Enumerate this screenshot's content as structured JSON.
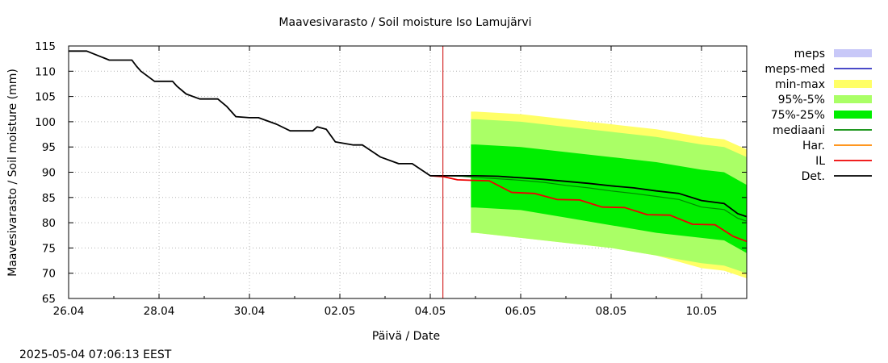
{
  "chart_data": {
    "type": "area",
    "title": "Maavesivarasto / Soil moisture   Iso Lamujärvi",
    "xlabel": "Päivä / Date",
    "ylabel": "Maavesivarasto / Soil moisture (mm)",
    "timestamp": "2025-05-04 07:06:13 EEST",
    "xlim": [
      0,
      15
    ],
    "ylim": [
      65,
      115
    ],
    "x_ticks": [
      {
        "x": 0,
        "label": "26.04"
      },
      {
        "x": 2,
        "label": "28.04"
      },
      {
        "x": 4,
        "label": "30.04"
      },
      {
        "x": 6,
        "label": "02.05"
      },
      {
        "x": 8,
        "label": "04.05"
      },
      {
        "x": 10,
        "label": "06.05"
      },
      {
        "x": 12,
        "label": "08.05"
      },
      {
        "x": 14,
        "label": "10.05"
      }
    ],
    "y_ticks": [
      65,
      70,
      75,
      80,
      85,
      90,
      95,
      100,
      105,
      110,
      115
    ],
    "grid": true,
    "now_x": 8.28,
    "legend_position": "right",
    "legend": [
      {
        "label": "meps",
        "kind": "band",
        "color": "#c8c8f8"
      },
      {
        "label": "meps-med",
        "kind": "line",
        "color": "#3030c0"
      },
      {
        "label": "min-max",
        "kind": "band",
        "color": "#ffff66"
      },
      {
        "label": "95%-5%",
        "kind": "band",
        "color": "#aaff66"
      },
      {
        "label": "75%-25%",
        "kind": "band",
        "color": "#00ee00"
      },
      {
        "label": "mediaani",
        "kind": "line",
        "color": "#008800"
      },
      {
        "label": "Har.",
        "kind": "line",
        "color": "#ff8800"
      },
      {
        "label": "IL",
        "kind": "line",
        "color": "#ee0000"
      },
      {
        "label": "Det.",
        "kind": "line",
        "color": "#000000"
      }
    ],
    "bands": {
      "x": [
        8.9,
        9.0,
        10.0,
        11.0,
        12.0,
        13.0,
        14.0,
        14.5,
        15.0
      ],
      "minmax_upper": [
        102,
        102,
        101.5,
        100.5,
        99.5,
        98.5,
        97,
        96.5,
        94.5
      ],
      "minmax_lower": [
        78,
        78,
        77,
        76,
        75,
        73.5,
        71,
        70.5,
        69
      ],
      "p95_upper": [
        100.5,
        100.5,
        100,
        99,
        98,
        97,
        95.5,
        95,
        93
      ],
      "p5_lower": [
        78,
        78,
        77,
        76,
        75,
        73.5,
        72,
        71.5,
        70
      ],
      "p75_upper": [
        95.5,
        95.5,
        95,
        94,
        93,
        92,
        90.5,
        90,
        87.5
      ],
      "p25_lower": [
        83,
        83,
        82.5,
        81,
        79.5,
        78,
        77,
        76.5,
        74
      ]
    },
    "series": [
      {
        "name": "Det.",
        "color": "#000000",
        "x": [
          0,
          0.4,
          0.9,
          1.4,
          1.5,
          1.6,
          1.9,
          2.3,
          2.4,
          2.6,
          2.9,
          3.3,
          3.5,
          3.7,
          4.0,
          4.2,
          4.6,
          4.9,
          5.4,
          5.5,
          5.7,
          5.9,
          6.3,
          6.5,
          6.9,
          7.3,
          7.6,
          7.8,
          8.0,
          8.3,
          8.7,
          9.0,
          9.5,
          10.0,
          10.5,
          11.0,
          11.5,
          12.0,
          12.5,
          13.0,
          13.5,
          14.0,
          14.5,
          14.8,
          15.0
        ],
        "y": [
          114,
          114,
          112.2,
          112.2,
          111,
          110,
          108,
          108,
          107,
          105.5,
          104.5,
          104.5,
          103,
          101,
          100.8,
          100.8,
          99.5,
          98.2,
          98.2,
          99,
          98.5,
          96,
          95.4,
          95.4,
          93,
          91.7,
          91.7,
          90.5,
          89.3,
          89.3,
          89.3,
          89.3,
          89.2,
          88.9,
          88.6,
          88.2,
          87.8,
          87.3,
          86.9,
          86.3,
          85.8,
          84.4,
          83.8,
          81.8,
          81.2
        ]
      },
      {
        "name": "mediaani",
        "color": "#008800",
        "x": [
          8.3,
          8.7,
          9.0,
          9.5,
          10.0,
          10.5,
          11.0,
          11.5,
          12.0,
          12.5,
          13.0,
          13.5,
          14.0,
          14.5,
          14.8,
          15.0
        ],
        "y": [
          89.3,
          89.2,
          89.0,
          88.7,
          88.4,
          88.0,
          87.4,
          86.9,
          86.3,
          85.8,
          85.2,
          84.6,
          83.1,
          82.6,
          80.9,
          80.3
        ]
      },
      {
        "name": "IL",
        "color": "#ee0000",
        "x": [
          8.0,
          8.3,
          8.6,
          8.9,
          9.3,
          9.8,
          10.3,
          10.8,
          11.3,
          11.8,
          12.3,
          12.8,
          13.3,
          13.8,
          14.3,
          14.7,
          15.0
        ],
        "y": [
          89.3,
          89.1,
          88.5,
          88.4,
          88.3,
          86.0,
          85.8,
          84.6,
          84.5,
          83.1,
          83.0,
          81.6,
          81.5,
          79.7,
          79.6,
          77.3,
          76.3
        ]
      }
    ]
  }
}
